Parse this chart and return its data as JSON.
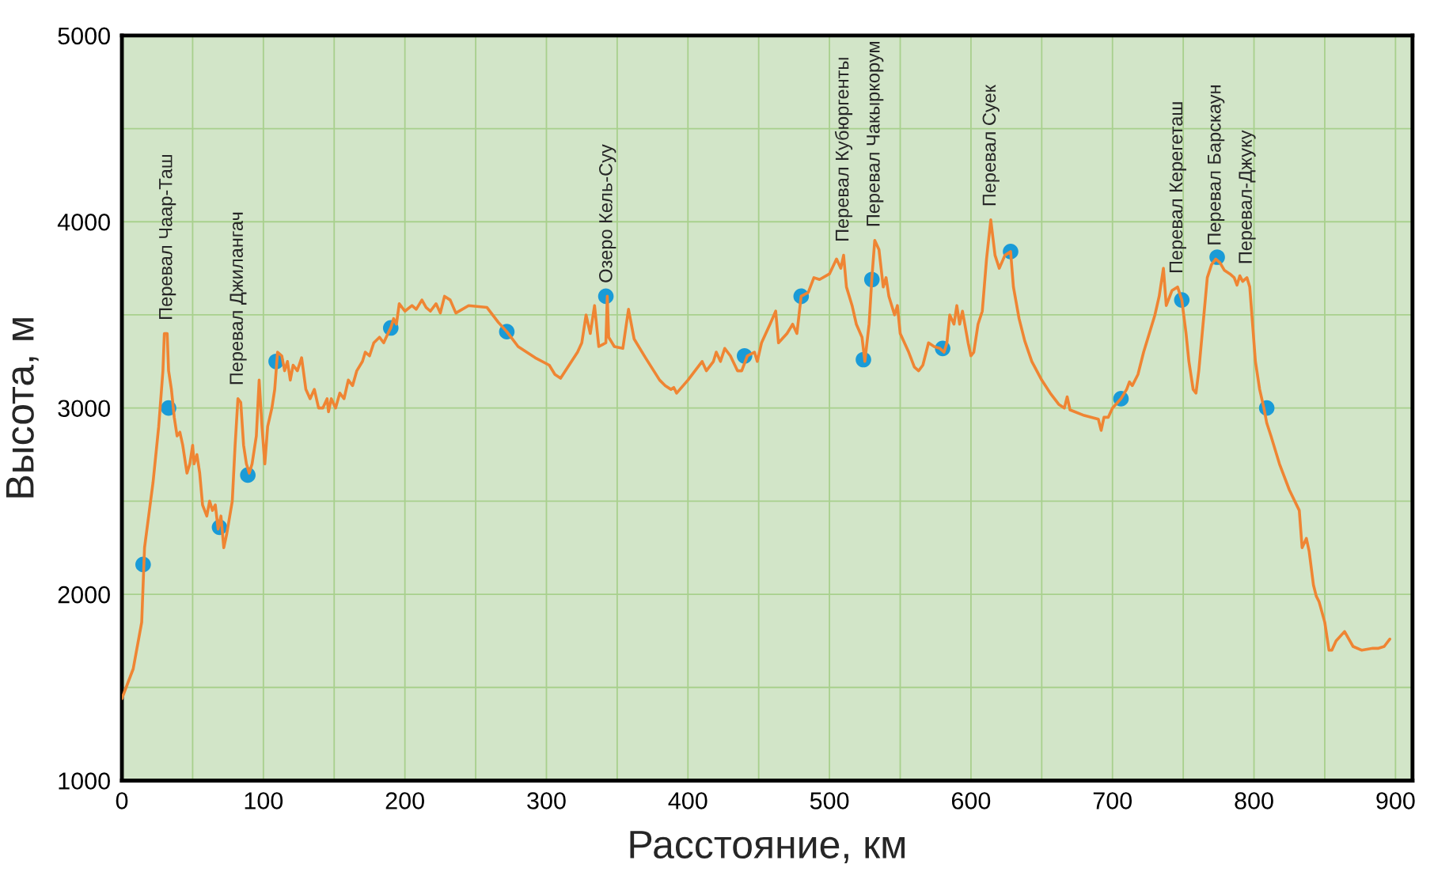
{
  "chart_data": {
    "type": "line",
    "xlabel": "Расстояние, км",
    "ylabel": "Высота, м",
    "xlim": [
      0,
      912
    ],
    "ylim": [
      1000,
      5000
    ],
    "xticks": [
      0,
      {
        "value": 50,
        "label": null
      },
      100,
      {
        "value": 150,
        "label": null
      },
      200,
      {
        "value": 250,
        "label": null
      },
      300,
      {
        "value": 350,
        "label": null
      },
      400,
      {
        "value": 450,
        "label": null
      },
      500,
      {
        "value": 550,
        "label": null
      },
      600,
      {
        "value": 650,
        "label": null
      },
      700,
      {
        "value": 750,
        "label": null
      },
      800,
      {
        "value": 850,
        "label": null
      },
      900
    ],
    "yticks": [
      1000,
      {
        "value": 1500,
        "label": null
      },
      2000,
      {
        "value": 2500,
        "label": null
      },
      3000,
      {
        "value": 3500,
        "label": null
      },
      4000,
      {
        "value": 4500,
        "label": null
      },
      5000
    ],
    "grid": true,
    "series": [
      {
        "color": "#ef8533",
        "marker": "none",
        "line_style": "solid",
        "x": [
          0,
          8,
          14,
          16,
          22,
          26,
          29,
          30,
          32,
          33,
          35,
          37,
          39,
          41,
          43,
          46,
          48,
          50,
          51,
          53,
          55,
          57,
          60,
          62,
          64,
          66,
          68,
          70,
          72,
          74,
          78,
          80,
          82,
          84,
          86,
          88,
          90,
          92,
          95,
          97,
          99,
          101,
          103,
          106,
          108,
          110,
          113,
          115,
          117,
          119,
          121,
          124,
          127,
          130,
          133,
          136,
          139,
          142,
          145,
          146,
          148,
          151,
          154,
          157,
          160,
          163,
          166,
          170,
          172,
          175,
          178,
          182,
          185,
          188,
          190,
          192,
          194,
          196,
          200,
          205,
          208,
          212,
          215,
          218,
          222,
          225,
          228,
          232,
          236,
          245,
          258,
          266,
          272,
          280,
          292,
          302,
          306,
          310,
          322,
          325,
          328,
          331,
          334,
          337,
          342,
          343,
          344,
          348,
          354,
          358,
          362,
          370,
          380,
          384,
          388,
          390,
          392,
          400,
          410,
          413,
          418,
          420,
          423,
          426,
          430,
          435,
          438,
          442,
          447,
          449,
          452,
          458,
          462,
          464,
          470,
          474,
          477,
          480,
          485,
          489,
          493,
          500,
          505,
          508,
          510,
          512,
          516,
          519,
          523,
          525,
          528,
          530,
          532,
          535,
          538,
          540,
          542,
          546,
          548,
          550,
          556,
          560,
          563,
          566,
          570,
          574,
          578,
          581,
          583,
          585,
          588,
          590,
          592,
          594,
          598,
          600,
          602,
          605,
          608,
          611,
          614,
          617,
          620,
          624,
          628,
          630,
          634,
          638,
          643,
          650,
          656,
          662,
          666,
          668,
          670,
          680,
          690,
          692,
          694,
          697,
          700,
          706,
          710,
          712,
          714,
          718,
          722,
          726,
          730,
          733,
          736,
          738,
          742,
          746,
          749,
          752,
          754,
          757,
          759,
          761,
          764,
          767,
          770,
          773,
          776,
          779,
          783,
          786,
          788,
          790,
          792,
          795,
          797,
          799,
          801,
          804,
          807,
          809,
          812,
          818,
          825,
          832,
          834,
          837,
          839,
          842,
          844,
          846,
          850,
          853,
          855,
          858,
          864,
          870,
          876,
          884,
          888,
          892,
          896
        ],
        "values": [
          1440,
          1600,
          1850,
          2250,
          2600,
          2900,
          3200,
          3400,
          3400,
          3200,
          3100,
          2950,
          2850,
          2870,
          2800,
          2650,
          2700,
          2800,
          2700,
          2750,
          2650,
          2480,
          2420,
          2500,
          2450,
          2480,
          2350,
          2420,
          2250,
          2320,
          2500,
          2800,
          3050,
          3030,
          2800,
          2700,
          2650,
          2700,
          2850,
          3150,
          2900,
          2700,
          2900,
          3000,
          3100,
          3300,
          3280,
          3200,
          3250,
          3150,
          3230,
          3200,
          3270,
          3100,
          3050,
          3100,
          3000,
          3000,
          3050,
          2980,
          3050,
          3000,
          3080,
          3050,
          3150,
          3120,
          3200,
          3250,
          3300,
          3280,
          3350,
          3380,
          3350,
          3400,
          3430,
          3480,
          3450,
          3560,
          3520,
          3550,
          3530,
          3580,
          3540,
          3520,
          3560,
          3510,
          3600,
          3580,
          3510,
          3550,
          3540,
          3460,
          3410,
          3330,
          3270,
          3230,
          3180,
          3160,
          3300,
          3350,
          3500,
          3400,
          3550,
          3330,
          3350,
          3600,
          3380,
          3330,
          3320,
          3530,
          3370,
          3270,
          3150,
          3120,
          3100,
          3110,
          3080,
          3150,
          3250,
          3200,
          3250,
          3300,
          3250,
          3320,
          3280,
          3200,
          3200,
          3280,
          3300,
          3250,
          3350,
          3450,
          3520,
          3350,
          3400,
          3450,
          3400,
          3600,
          3620,
          3700,
          3690,
          3720,
          3800,
          3750,
          3820,
          3650,
          3550,
          3450,
          3380,
          3250,
          3450,
          3700,
          3900,
          3850,
          3650,
          3700,
          3600,
          3500,
          3550,
          3400,
          3300,
          3220,
          3200,
          3230,
          3350,
          3330,
          3320,
          3300,
          3350,
          3500,
          3450,
          3550,
          3450,
          3520,
          3350,
          3280,
          3300,
          3450,
          3520,
          3800,
          4010,
          3820,
          3750,
          3820,
          3840,
          3650,
          3480,
          3360,
          3250,
          3150,
          3080,
          3020,
          3000,
          3060,
          2990,
          2960,
          2940,
          2880,
          2950,
          2950,
          3000,
          3050,
          3100,
          3140,
          3120,
          3180,
          3300,
          3400,
          3500,
          3600,
          3750,
          3550,
          3630,
          3650,
          3580,
          3400,
          3250,
          3100,
          3080,
          3200,
          3450,
          3700,
          3770,
          3800,
          3780,
          3740,
          3720,
          3700,
          3660,
          3710,
          3680,
          3700,
          3650,
          3450,
          3250,
          3100,
          3000,
          2920,
          2850,
          2700,
          2560,
          2450,
          2250,
          2300,
          2230,
          2050,
          1990,
          1960,
          1850,
          1700,
          1700,
          1750,
          1800,
          1720,
          1700,
          1710,
          1710,
          1720,
          1760
        ]
      },
      {
        "type": "scatter",
        "color": "#1a9bd7",
        "marker": "circle",
        "x": [
          15,
          33,
          69,
          89,
          109,
          190,
          272,
          342,
          440,
          480,
          524,
          530,
          580,
          628,
          706,
          749,
          774,
          809
        ],
        "values": [
          2160,
          3000,
          2360,
          2640,
          3250,
          3430,
          3410,
          3600,
          3280,
          3600,
          3260,
          3690,
          3320,
          3840,
          3050,
          3580,
          3810,
          3000
        ]
      }
    ],
    "annotations": [
      {
        "text": "Перевал Чаар-Таш",
        "x": 32,
        "y": 3400
      },
      {
        "text": "Перевал Джилангач",
        "x": 82,
        "y": 3050
      },
      {
        "text": "Озеро Кель-Суу",
        "x": 343,
        "y": 3600
      },
      {
        "text": "Перевал Кубюргенты",
        "x": 510,
        "y": 3820
      },
      {
        "text": "Перевал Чакыркорум",
        "x": 532,
        "y": 3900
      },
      {
        "text": "Перевал Суек",
        "x": 614,
        "y": 4010
      },
      {
        "text": "Перевал Керегеташ",
        "x": 746,
        "y": 3650
      },
      {
        "text": "Перевал Барскаун",
        "x": 773,
        "y": 3800
      },
      {
        "text": "Перевал-Джуку",
        "x": 795,
        "y": 3700
      }
    ]
  }
}
